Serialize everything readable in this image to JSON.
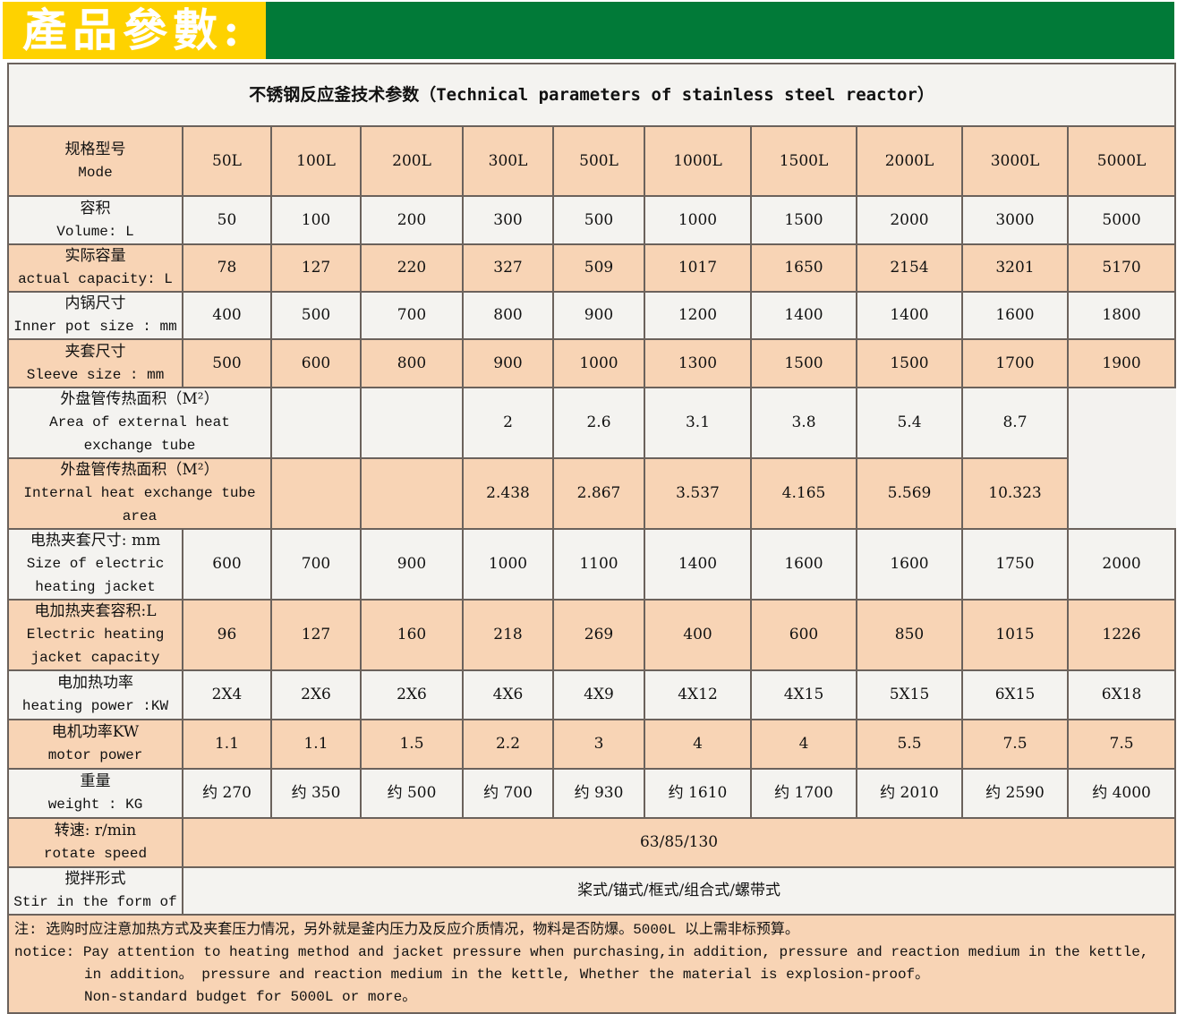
{
  "banner": {
    "title": "產品參數:",
    "colors": {
      "yellow": "#fed200",
      "green": "#017a38"
    }
  },
  "table": {
    "title": "不锈钢反应釜技术参数（Technical parameters of stainless steel reactor）",
    "header": {
      "label_cn": "规格型号",
      "label_en": "Mode",
      "models": [
        "50L",
        "100L",
        "200L",
        "300L",
        "500L",
        "1000L",
        "1500L",
        "2000L",
        "3000L",
        "5000L"
      ]
    },
    "rows": [
      {
        "cn": "容积",
        "en": "Volume: L",
        "values": [
          "50",
          "100",
          "200",
          "300",
          "500",
          "1000",
          "1500",
          "2000",
          "3000",
          "5000"
        ]
      },
      {
        "cn": "实际容量",
        "en": "actual capacity: L",
        "values": [
          "78",
          "127",
          "220",
          "327",
          "509",
          "1017",
          "1650",
          "2154",
          "3201",
          "5170"
        ]
      },
      {
        "cn": "内锅尺寸",
        "en": "Inner pot size : mm",
        "values": [
          "400",
          "500",
          "700",
          "800",
          "900",
          "1200",
          "1400",
          "1400",
          "1600",
          "1800"
        ]
      },
      {
        "cn": "夹套尺寸",
        "en": "Sleeve size  : mm",
        "values": [
          "500",
          "600",
          "800",
          "900",
          "1000",
          "1300",
          "1500",
          "1500",
          "1700",
          "1900"
        ]
      },
      {
        "cn": "外盘管传热面积（M²）",
        "en": "Area of external heat exchange tube",
        "wide": true,
        "values": [
          "",
          "",
          "2",
          "2.6",
          "3.1",
          "3.8",
          "5.4",
          "8.7"
        ]
      },
      {
        "cn": "外盘管传热面积（M²）",
        "en": "Internal heat exchange tube area",
        "wide": true,
        "values": [
          "",
          "",
          "2.438",
          "2.867",
          "3.537",
          "4.165",
          "5.569",
          "10.323"
        ]
      },
      {
        "cn": "电热夹套尺寸: mm",
        "en": "Size of electric heating jacket",
        "values": [
          "600",
          "700",
          "900",
          "1000",
          "1100",
          "1400",
          "1600",
          "1600",
          "1750",
          "2000"
        ]
      },
      {
        "cn": "电加热夹套容积:L",
        "en": "Electric heating jacket capacity",
        "values": [
          "96",
          "127",
          "160",
          "218",
          "269",
          "400",
          "600",
          "850",
          "1015",
          "1226"
        ]
      },
      {
        "cn": "电加热功率",
        "en": "heating power  :KW",
        "values": [
          "2X4",
          "2X6",
          "2X6",
          "4X6",
          "4X9",
          "4X12",
          "4X15",
          "5X15",
          "6X15",
          "6X18"
        ]
      },
      {
        "cn": "电机功率KW",
        "en": "motor power",
        "values": [
          "1.1",
          "1.1",
          "1.5",
          "2.2",
          "3",
          "4",
          "4",
          "5.5",
          "7.5",
          "7.5"
        ]
      },
      {
        "cn": "重量",
        "en": "weight  : KG",
        "values": [
          "约 270",
          "约 350",
          "约 500",
          "约 700",
          "约 930",
          "约 1610",
          "约 1700",
          "约 2010",
          "约 2590",
          "约 4000"
        ]
      },
      {
        "cn": "转速: r/min",
        "en": "rotate  speed",
        "span": true,
        "values": [
          "63/85/130"
        ]
      },
      {
        "cn": "搅拌形式",
        "en": "Stir in the form of",
        "span": true,
        "values": [
          "桨式/锚式/框式/组合式/螺带式"
        ]
      }
    ],
    "note": {
      "cn": "注: 选购时应注意加热方式及夹套压力情况，另外就是釜内压力及反应介质情况，物料是否防爆。5000L 以上需非标预算。",
      "en1": "notice: Pay attention to heating method and jacket pressure when purchasing,in addition, pressure and reaction medium in the kettle,",
      "en2": "in addition。 pressure and reaction medium in the kettle, Whether the material is explosion-proof。",
      "en3": "Non-standard budget for 5000L or more。"
    }
  }
}
